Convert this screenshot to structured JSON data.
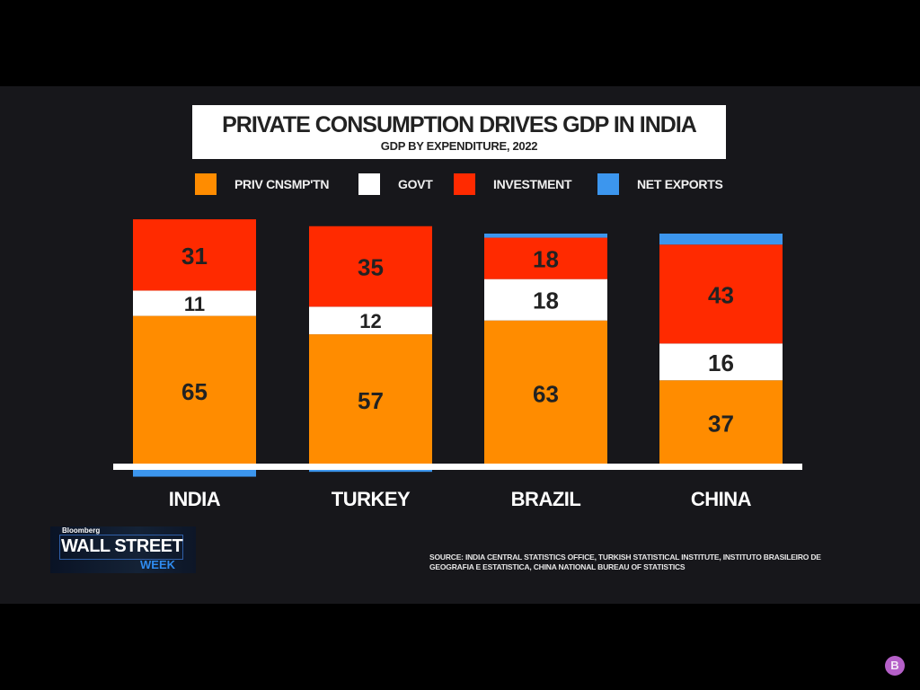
{
  "colors": {
    "priv": "#ff8c00",
    "govt": "#ffffff",
    "investment": "#ff2a00",
    "net_exports": "#3c96ee",
    "background": "#17171b",
    "baseline": "#ffffff"
  },
  "chart_data": {
    "type": "bar",
    "stacked": true,
    "title": "PRIVATE CONSUMPTION DRIVES GDP IN INDIA",
    "subtitle": "GDP BY EXPENDITURE, 2022",
    "units": "% of GDP",
    "categories": [
      "INDIA",
      "TURKEY",
      "BRAZIL",
      "CHINA"
    ],
    "series": [
      {
        "key": "priv",
        "name": "PRIV CNSMP'TN",
        "values": [
          65,
          57,
          63,
          37
        ],
        "labeled": true
      },
      {
        "key": "govt",
        "name": "GOVT",
        "values": [
          11,
          12,
          18,
          16
        ],
        "labeled": true
      },
      {
        "key": "investment",
        "name": "INVESTMENT",
        "values": [
          31,
          35,
          18,
          43
        ],
        "labeled": true
      },
      {
        "key": "net_exports",
        "name": "NET EXPORTS",
        "values": [
          -7,
          -4,
          1,
          4
        ],
        "labeled": false
      }
    ],
    "legend_position": "top",
    "grid": false,
    "ylim": [
      -7,
      107
    ]
  },
  "legend": [
    {
      "key": "priv",
      "label": "PRIV CNSMP'TN"
    },
    {
      "key": "govt",
      "label": "GOVT"
    },
    {
      "key": "investment",
      "label": "INVESTMENT"
    },
    {
      "key": "net_exports",
      "label": "NET EXPORTS"
    }
  ],
  "logo": {
    "brand": "Bloomberg",
    "main": "WALL STREET",
    "sub": "WEEK"
  },
  "source": "SOURCE: INDIA CENTRAL STATISTICS OFFICE, TURKISH STATISTICAL INSTITUTE, INSTITUTO BRASILEIRO DE GEOGRAFIA E ESTATISTICA, CHINA NATIONAL BUREAU OF STATISTICS",
  "badge": "B"
}
